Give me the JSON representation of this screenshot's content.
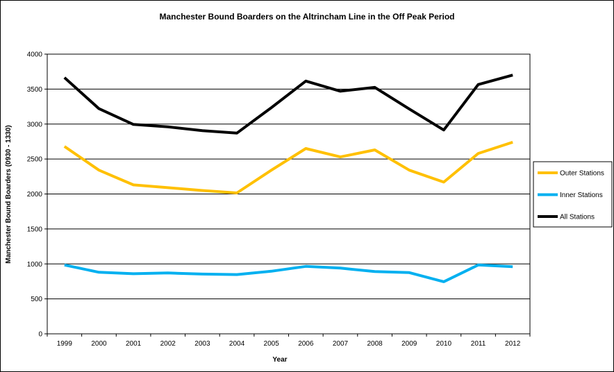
{
  "chart_data": {
    "type": "line",
    "title": "Manchester Bound Boarders on the Altrincham Line in the Off Peak Period",
    "xlabel": "Year",
    "ylabel": "Manchester Bound Boarders (0930 - 1330)",
    "categories": [
      "1999",
      "2000",
      "2001",
      "2002",
      "2003",
      "2004",
      "2005",
      "2006",
      "2007",
      "2008",
      "2009",
      "2010",
      "2011",
      "2012"
    ],
    "ylim": [
      0,
      4000
    ],
    "yticks": [
      0,
      500,
      1000,
      1500,
      2000,
      2500,
      3000,
      3500,
      4000
    ],
    "grid": true,
    "legend_position": "right",
    "series": [
      {
        "name": "Outer Stations",
        "color": "#FFC000",
        "values": [
          2680,
          2340,
          2130,
          2090,
          2050,
          2015,
          2340,
          2650,
          2530,
          2630,
          2340,
          2170,
          2580,
          2740
        ]
      },
      {
        "name": "Inner Stations",
        "color": "#00B0F0",
        "values": [
          985,
          880,
          860,
          870,
          855,
          848,
          895,
          965,
          940,
          890,
          875,
          745,
          985,
          960
        ]
      },
      {
        "name": "All Stations",
        "color": "#000000",
        "values": [
          3665,
          3220,
          2995,
          2960,
          2905,
          2870,
          3235,
          3615,
          3470,
          3525,
          3215,
          2915,
          3565,
          3700
        ]
      }
    ]
  }
}
